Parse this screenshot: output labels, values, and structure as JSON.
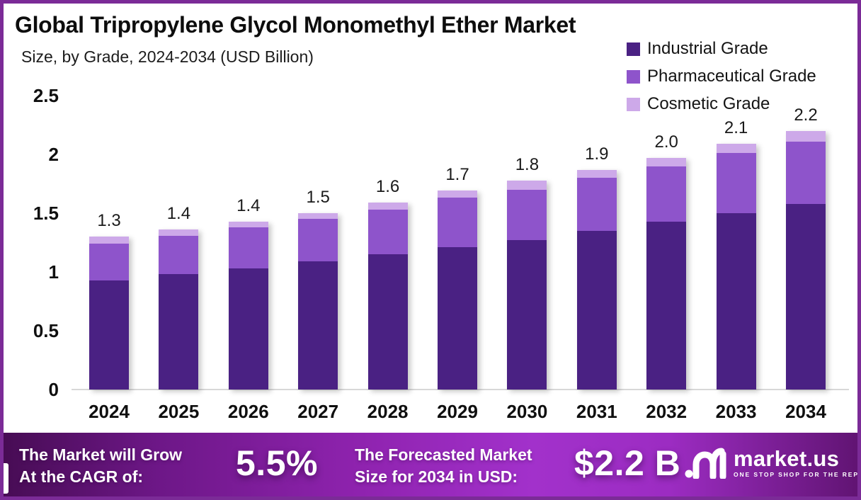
{
  "title": "Global Tripropylene Glycol Monomethyl Ether Market",
  "subtitle": "Size, by Grade, 2024-2034 (USD Billion)",
  "legend": [
    {
      "label": "Industrial Grade",
      "color": "#4a2183"
    },
    {
      "label": "Pharmaceutical Grade",
      "color": "#8e54cb"
    },
    {
      "label": "Cosmetic Grade",
      "color": "#cda9e9"
    }
  ],
  "chart_data": {
    "type": "bar",
    "stacked": true,
    "title": "Global Tripropylene Glycol Monomethyl Ether Market Size, by Grade, 2024-2034 (USD Billion)",
    "categories": [
      "2024",
      "2025",
      "2026",
      "2027",
      "2028",
      "2029",
      "2030",
      "2031",
      "2032",
      "2033",
      "2034"
    ],
    "series": [
      {
        "name": "Industrial Grade",
        "color": "#4a2183",
        "values": [
          0.93,
          0.98,
          1.03,
          1.09,
          1.15,
          1.21,
          1.27,
          1.35,
          1.43,
          1.5,
          1.58
        ]
      },
      {
        "name": "Pharmaceutical Grade",
        "color": "#8e54cb",
        "values": [
          0.31,
          0.33,
          0.35,
          0.36,
          0.38,
          0.42,
          0.43,
          0.45,
          0.47,
          0.51,
          0.53
        ]
      },
      {
        "name": "Cosmetic Grade",
        "color": "#cda9e9",
        "values": [
          0.06,
          0.05,
          0.05,
          0.05,
          0.06,
          0.06,
          0.08,
          0.07,
          0.07,
          0.08,
          0.09
        ]
      }
    ],
    "total_labels": [
      "1.3",
      "1.4",
      "1.4",
      "1.5",
      "1.6",
      "1.7",
      "1.8",
      "1.9",
      "2.0",
      "2.1",
      "2.2"
    ],
    "xlabel": "",
    "ylabel": "",
    "ylim": [
      0,
      2.5
    ],
    "yticks": [
      {
        "v": 0,
        "label": "0"
      },
      {
        "v": 0.5,
        "label": "0.5"
      },
      {
        "v": 1,
        "label": "1"
      },
      {
        "v": 1.5,
        "label": "1.5"
      },
      {
        "v": 2,
        "label": "2"
      },
      {
        "v": 2.5,
        "label": "2.5"
      }
    ],
    "grid": false,
    "legend_position": "top-right"
  },
  "banner": {
    "cagr_label_line1": "The Market will Grow",
    "cagr_label_line2": "At the CAGR of:",
    "cagr_value": "5.5%",
    "forecast_label_line1": "The Forecasted Market",
    "forecast_label_line2": "Size for 2034 in USD:",
    "forecast_value": "$2.2 B",
    "brand_name": "market.us",
    "brand_tagline": "ONE STOP SHOP FOR THE REPORTS"
  },
  "icons": {
    "brand": "marketus-wave-icon"
  }
}
